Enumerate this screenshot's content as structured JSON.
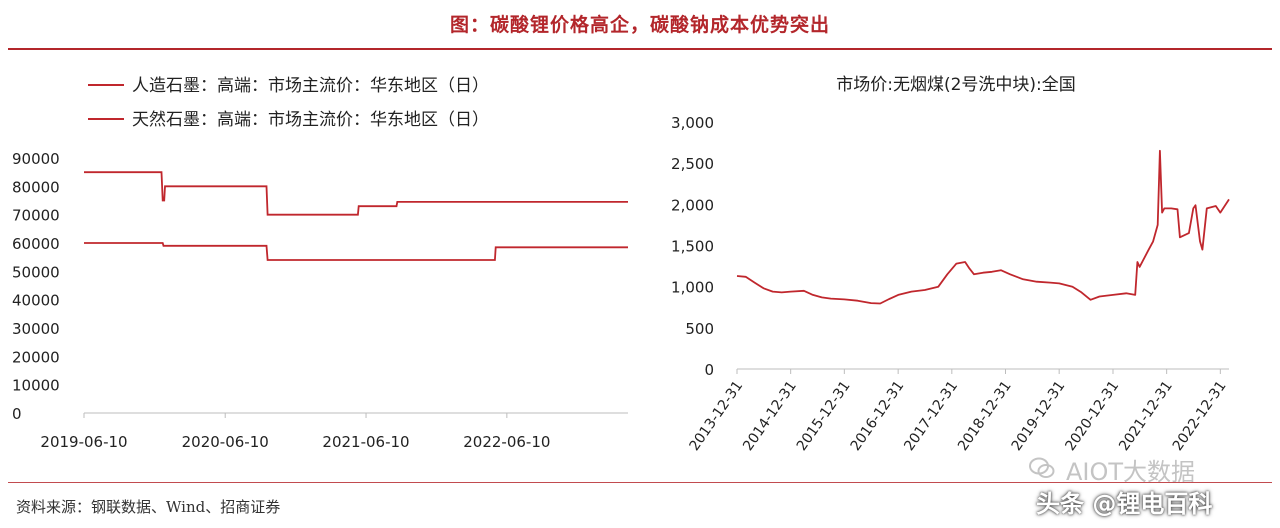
{
  "figure": {
    "title": "图：碳酸锂价格高企，碳酸钠成本优势突出",
    "source": "资料来源：钢联数据、Wind、招商证券",
    "watermark": "AIOT大数据",
    "watermark_credit": "头条 @锂电百科"
  },
  "chart_data": [
    {
      "type": "line",
      "title": "",
      "xlabel": "",
      "ylabel": "",
      "ylim": [
        0,
        90000
      ],
      "xlim": [
        "2019-06-10",
        "2023-04-20"
      ],
      "yticks": [
        "0",
        "10000",
        "20000",
        "30000",
        "40000",
        "50000",
        "60000",
        "70000",
        "80000",
        "90000"
      ],
      "xticks": [
        "2019-06-10",
        "2020-06-10",
        "2021-06-10",
        "2022-06-10"
      ],
      "legend_position": "top-left",
      "grid": false,
      "color": "#c0272d",
      "series": [
        {
          "name": "人造石墨：高端：市场主流价：华东地区（日）",
          "points": [
            [
              "2019-06-10",
              85000
            ],
            [
              "2019-12-28",
              85000
            ],
            [
              "2019-12-31",
              75000
            ],
            [
              "2020-01-04",
              75000
            ],
            [
              "2020-01-06",
              80000
            ],
            [
              "2020-09-25",
              80000
            ],
            [
              "2020-09-28",
              70000
            ],
            [
              "2021-05-20",
              70000
            ],
            [
              "2021-05-22",
              73000
            ],
            [
              "2021-08-28",
              73000
            ],
            [
              "2021-08-30",
              74500
            ],
            [
              "2023-04-20",
              74500
            ]
          ]
        },
        {
          "name": "天然石墨：高端：市场主流价：华东地区（日）",
          "points": [
            [
              "2019-06-10",
              60000
            ],
            [
              "2019-12-31",
              60000
            ],
            [
              "2020-01-02",
              59000
            ],
            [
              "2020-09-25",
              59000
            ],
            [
              "2020-09-28",
              54000
            ],
            [
              "2022-05-10",
              54000
            ],
            [
              "2022-05-12",
              58500
            ],
            [
              "2023-04-20",
              58500
            ]
          ]
        }
      ]
    },
    {
      "type": "line",
      "title": "市场价:无烟煤(2号洗中块):全国",
      "xlabel": "",
      "ylabel": "",
      "ylim": [
        0,
        3000
      ],
      "xlim": [
        "2013-12-31",
        "2023-02-28"
      ],
      "yticks": [
        "0",
        "500",
        "1,000",
        "1,500",
        "2,000",
        "2,500",
        "3,000"
      ],
      "xticks": [
        "2013-12-31",
        "2014-12-31",
        "2015-12-31",
        "2016-12-31",
        "2017-12-31",
        "2018-12-31",
        "2019-12-31",
        "2020-12-31",
        "2021-12-31",
        "2022-12-31"
      ],
      "legend_position": "none",
      "grid": false,
      "color": "#c0272d",
      "series": [
        {
          "points": [
            [
              "2013-12-31",
              1130
            ],
            [
              "2014-02-28",
              1120
            ],
            [
              "2014-04-30",
              1050
            ],
            [
              "2014-06-30",
              980
            ],
            [
              "2014-08-31",
              940
            ],
            [
              "2014-10-31",
              930
            ],
            [
              "2014-12-31",
              940
            ],
            [
              "2015-03-31",
              950
            ],
            [
              "2015-05-31",
              900
            ],
            [
              "2015-07-31",
              870
            ],
            [
              "2015-09-30",
              855
            ],
            [
              "2015-12-31",
              845
            ],
            [
              "2016-03-31",
              830
            ],
            [
              "2016-06-30",
              800
            ],
            [
              "2016-08-31",
              795
            ],
            [
              "2016-10-31",
              850
            ],
            [
              "2016-12-31",
              900
            ],
            [
              "2017-03-31",
              940
            ],
            [
              "2017-06-30",
              960
            ],
            [
              "2017-09-30",
              1000
            ],
            [
              "2017-11-30",
              1150
            ],
            [
              "2018-01-31",
              1280
            ],
            [
              "2018-03-31",
              1300
            ],
            [
              "2018-04-30",
              1220
            ],
            [
              "2018-05-31",
              1150
            ],
            [
              "2018-07-31",
              1170
            ],
            [
              "2018-09-30",
              1180
            ],
            [
              "2018-11-30",
              1200
            ],
            [
              "2019-01-31",
              1150
            ],
            [
              "2019-04-30",
              1090
            ],
            [
              "2019-07-31",
              1060
            ],
            [
              "2019-10-31",
              1050
            ],
            [
              "2019-12-31",
              1040
            ],
            [
              "2020-03-31",
              1000
            ],
            [
              "2020-05-31",
              930
            ],
            [
              "2020-07-31",
              840
            ],
            [
              "2020-09-30",
              880
            ],
            [
              "2020-12-31",
              900
            ],
            [
              "2021-03-31",
              920
            ],
            [
              "2021-05-31",
              900
            ],
            [
              "2021-06-15",
              1300
            ],
            [
              "2021-06-30",
              1240
            ],
            [
              "2021-08-31",
              1450
            ],
            [
              "2021-09-30",
              1550
            ],
            [
              "2021-10-31",
              1750
            ],
            [
              "2021-11-15",
              2650
            ],
            [
              "2021-11-30",
              1900
            ],
            [
              "2021-12-15",
              1950
            ],
            [
              "2022-01-31",
              1950
            ],
            [
              "2022-03-15",
              1940
            ],
            [
              "2022-03-31",
              1600
            ],
            [
              "2022-05-31",
              1650
            ],
            [
              "2022-06-30",
              1950
            ],
            [
              "2022-07-15",
              1990
            ],
            [
              "2022-08-15",
              1550
            ],
            [
              "2022-08-31",
              1450
            ],
            [
              "2022-09-30",
              1950
            ],
            [
              "2022-11-30",
              1980
            ],
            [
              "2022-12-31",
              1900
            ],
            [
              "2023-02-28",
              2060
            ]
          ]
        }
      ]
    }
  ]
}
